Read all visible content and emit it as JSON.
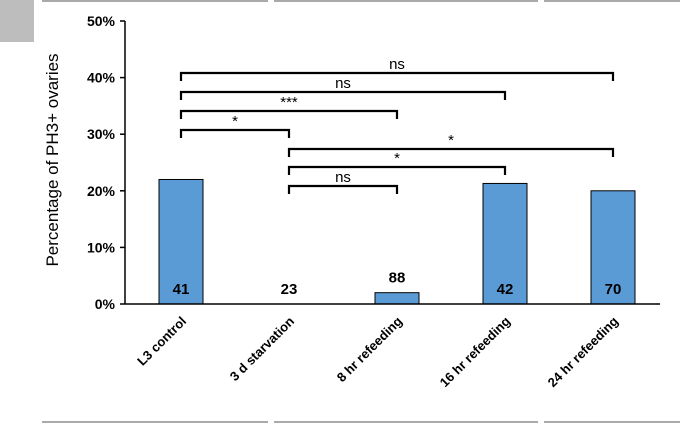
{
  "chart_data": {
    "type": "bar",
    "categories": [
      "L3 control",
      "3 d starvation",
      "8 hr refeeding",
      "16 hr refeeding",
      "24 hr refeeding"
    ],
    "values": [
      22,
      0,
      2,
      21.3,
      20
    ],
    "bar_color": "#5b9bd5",
    "sample_sizes": [
      "41",
      "23",
      "88",
      "42",
      "70"
    ],
    "ylabel": "Percentage of PH3+ ovaries",
    "ylim": [
      0,
      50
    ],
    "yticks": [
      "0%",
      "10%",
      "20%",
      "30%",
      "40%",
      "50%"
    ],
    "grid": false,
    "legend": "none",
    "significance": [
      {
        "from": 0,
        "to": 4,
        "label": "ns"
      },
      {
        "from": 0,
        "to": 3,
        "label": "ns"
      },
      {
        "from": 0,
        "to": 2,
        "label": "***"
      },
      {
        "from": 0,
        "to": 1,
        "label": "*"
      },
      {
        "from": 1,
        "to": 4,
        "label": "*"
      },
      {
        "from": 1,
        "to": 3,
        "label": "*"
      },
      {
        "from": 1,
        "to": 2,
        "label": "ns"
      }
    ]
  }
}
